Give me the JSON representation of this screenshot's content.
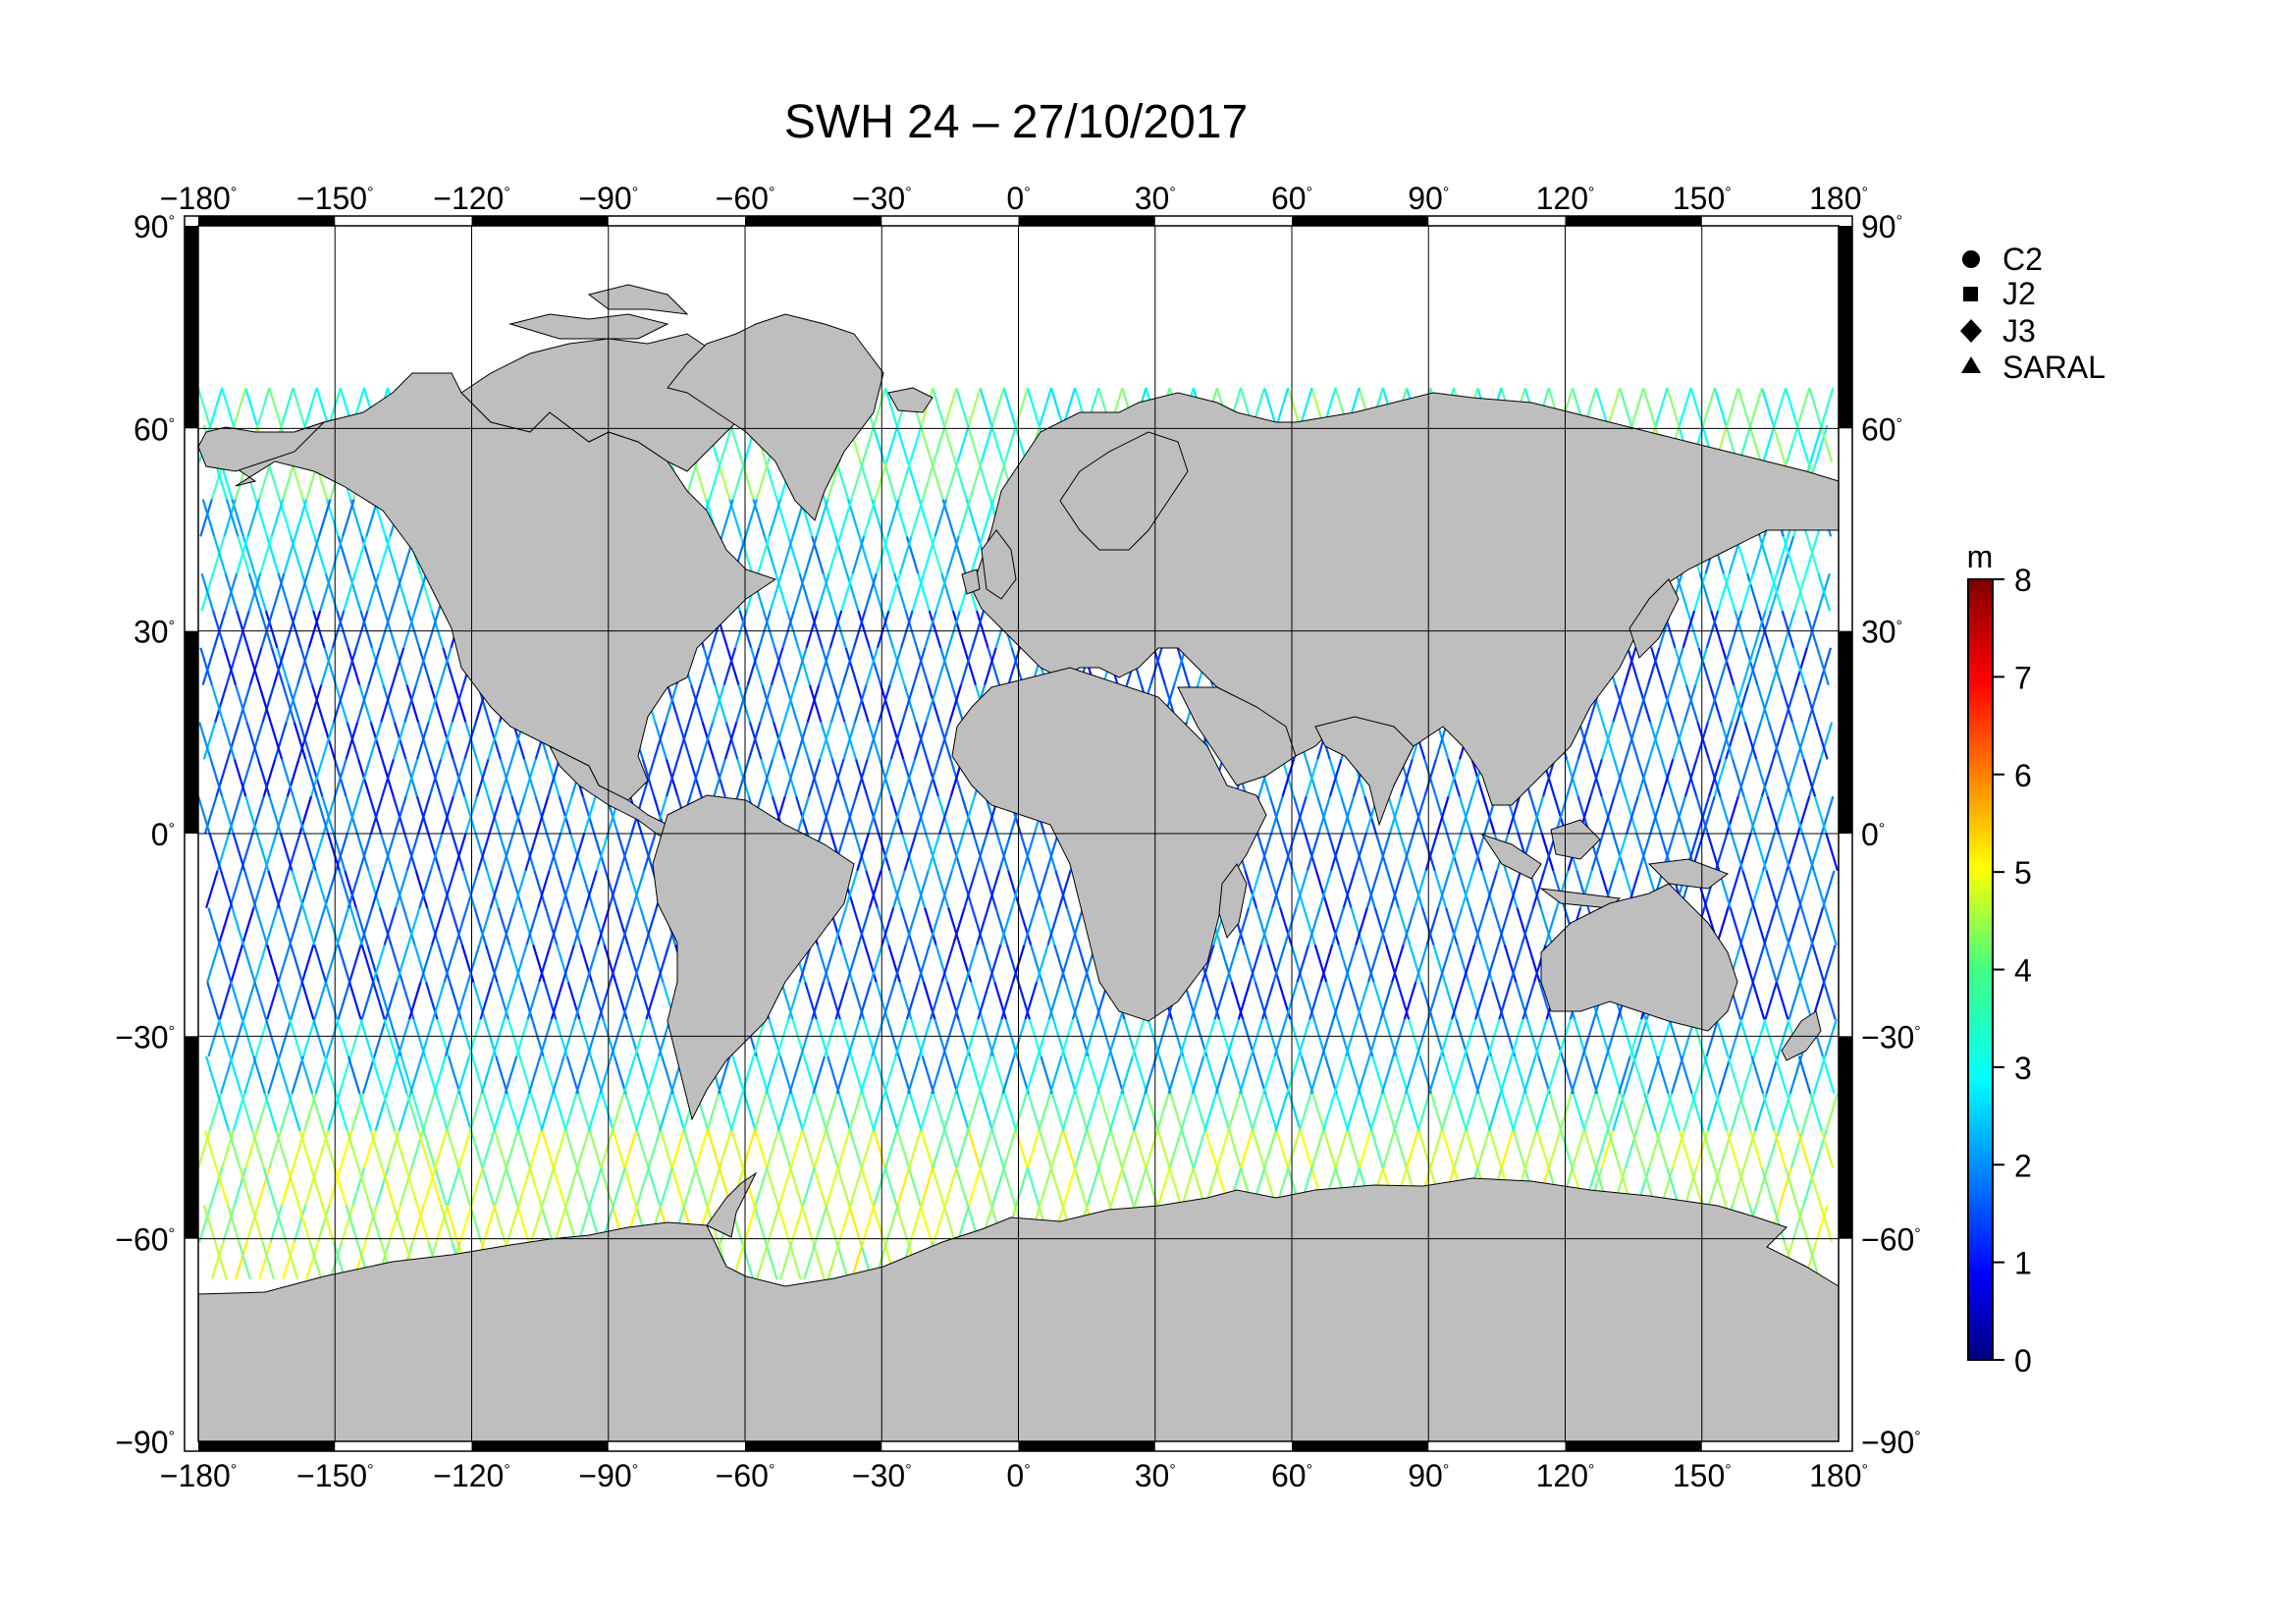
{
  "title": "SWH 24 – 27/10/2017",
  "map": {
    "lon_ticks": [
      "−180",
      "−150",
      "−120",
      "−90",
      "−60",
      "−30",
      "0",
      "30",
      "60",
      "90",
      "120",
      "150",
      "180"
    ],
    "lat_ticks": [
      "90",
      "60",
      "30",
      "0",
      "−30",
      "−60",
      "−90"
    ],
    "degree_symbol": "°",
    "lon_range": [
      -180,
      180
    ],
    "lat_range": [
      -90,
      90
    ],
    "land_color": "#bebebe",
    "ocean_color": "#ffffff"
  },
  "legend": {
    "items": [
      {
        "label": "C2",
        "marker": "circle"
      },
      {
        "label": "J2",
        "marker": "square"
      },
      {
        "label": "J3",
        "marker": "diamond"
      },
      {
        "label": "SARAL",
        "marker": "triangle"
      }
    ]
  },
  "colorbar": {
    "unit": "m",
    "ticks": [
      "8",
      "7",
      "6",
      "5",
      "4",
      "3",
      "2",
      "1",
      "0"
    ],
    "range": [
      0,
      8
    ],
    "colormap": "jet"
  }
}
